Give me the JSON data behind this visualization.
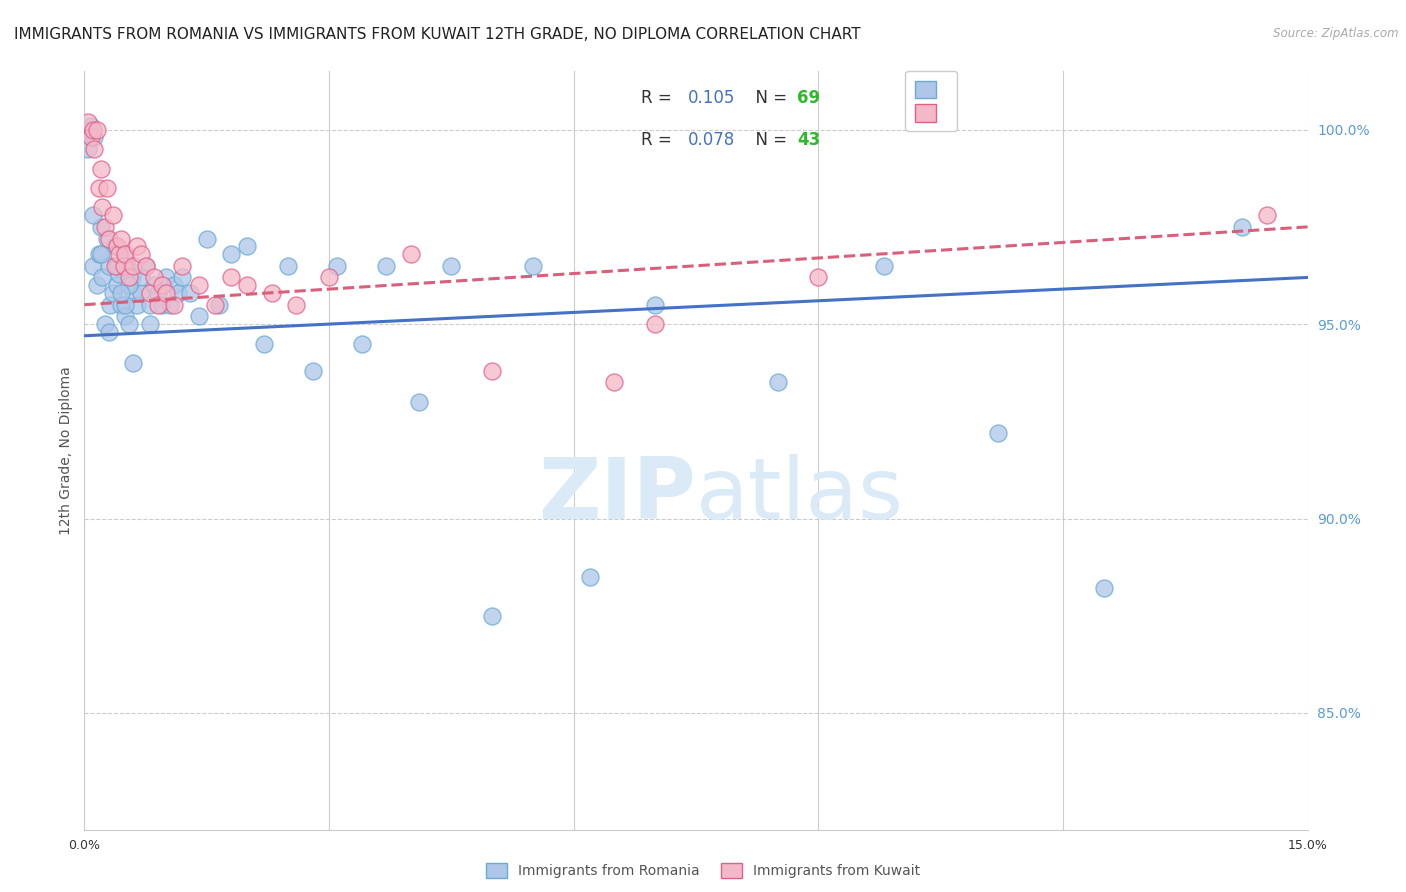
{
  "title": "IMMIGRANTS FROM ROMANIA VS IMMIGRANTS FROM KUWAIT 12TH GRADE, NO DIPLOMA CORRELATION CHART",
  "source": "Source: ZipAtlas.com",
  "ylabel_left": "12th Grade, No Diploma",
  "xlim": [
    0.0,
    15.0
  ],
  "ylim": [
    82.0,
    101.5
  ],
  "xticks": [
    0.0,
    3.0,
    6.0,
    9.0,
    12.0,
    15.0
  ],
  "xtick_labels": [
    "0.0%",
    "",
    "",
    "",
    "",
    "15.0%"
  ],
  "yticks_right": [
    85.0,
    90.0,
    95.0,
    100.0
  ],
  "ytick_labels_right": [
    "85.0%",
    "90.0%",
    "95.0%",
    "100.0%"
  ],
  "romania_color": "#aec6e8",
  "kuwait_color": "#f5b8c8",
  "romania_edge": "#6aaad4",
  "kuwait_edge": "#e0608a",
  "romania_R": 0.105,
  "romania_N": 69,
  "kuwait_R": 0.078,
  "kuwait_N": 43,
  "legend_romania": "Immigrants from Romania",
  "legend_kuwait": "Immigrants from Kuwait",
  "romania_scatter_x": [
    0.05,
    0.05,
    0.08,
    0.1,
    0.12,
    0.15,
    0.18,
    0.2,
    0.22,
    0.25,
    0.28,
    0.3,
    0.32,
    0.35,
    0.38,
    0.4,
    0.42,
    0.45,
    0.48,
    0.5,
    0.52,
    0.55,
    0.58,
    0.6,
    0.65,
    0.7,
    0.75,
    0.8,
    0.85,
    0.9,
    0.95,
    1.0,
    1.05,
    1.1,
    1.15,
    1.2,
    1.3,
    1.4,
    1.5,
    1.65,
    1.8,
    2.0,
    2.2,
    2.5,
    2.8,
    3.1,
    3.4,
    3.7,
    4.1,
    4.5,
    5.0,
    5.5,
    6.2,
    7.0,
    8.5,
    9.8,
    11.2,
    12.5,
    14.2,
    0.1,
    0.2,
    0.3,
    0.4,
    0.5,
    0.6,
    0.7,
    0.8,
    0.55,
    0.45
  ],
  "romania_scatter_y": [
    100.0,
    99.5,
    100.1,
    96.5,
    99.8,
    96.0,
    96.8,
    97.5,
    96.2,
    95.0,
    97.2,
    96.5,
    95.5,
    95.8,
    97.0,
    96.0,
    96.3,
    95.5,
    96.8,
    95.2,
    96.5,
    95.0,
    96.2,
    95.8,
    95.5,
    95.8,
    96.5,
    95.5,
    96.0,
    95.8,
    95.5,
    96.2,
    95.5,
    96.0,
    95.8,
    96.2,
    95.8,
    95.2,
    97.2,
    95.5,
    96.8,
    97.0,
    94.5,
    96.5,
    93.8,
    96.5,
    94.5,
    96.5,
    93.0,
    96.5,
    87.5,
    96.5,
    88.5,
    95.5,
    93.5,
    96.5,
    92.2,
    88.2,
    97.5,
    97.8,
    96.8,
    94.8,
    96.5,
    95.5,
    94.0,
    96.2,
    95.0,
    96.0,
    95.8
  ],
  "kuwait_scatter_x": [
    0.05,
    0.08,
    0.1,
    0.12,
    0.15,
    0.18,
    0.2,
    0.22,
    0.25,
    0.28,
    0.3,
    0.35,
    0.38,
    0.4,
    0.42,
    0.45,
    0.48,
    0.5,
    0.55,
    0.6,
    0.65,
    0.7,
    0.75,
    0.8,
    0.85,
    0.9,
    0.95,
    1.0,
    1.1,
    1.2,
    1.4,
    1.6,
    1.8,
    2.0,
    2.3,
    2.6,
    3.0,
    4.0,
    5.0,
    6.5,
    7.0,
    9.0,
    14.5
  ],
  "kuwait_scatter_y": [
    100.2,
    99.8,
    100.0,
    99.5,
    100.0,
    98.5,
    99.0,
    98.0,
    97.5,
    98.5,
    97.2,
    97.8,
    96.5,
    97.0,
    96.8,
    97.2,
    96.5,
    96.8,
    96.2,
    96.5,
    97.0,
    96.8,
    96.5,
    95.8,
    96.2,
    95.5,
    96.0,
    95.8,
    95.5,
    96.5,
    96.0,
    95.5,
    96.2,
    96.0,
    95.8,
    95.5,
    96.2,
    96.8,
    93.8,
    93.5,
    95.0,
    96.2,
    97.8
  ],
  "background_color": "#ffffff",
  "grid_color": "#cccccc",
  "title_fontsize": 11,
  "axis_label_fontsize": 10,
  "tick_fontsize": 9,
  "watermark_text": "ZIPatlas",
  "watermark_color": "#daeaf7",
  "trendline_romania_color": "#4472c4",
  "trendline_kuwait_color": "#d95f7a",
  "legend_r_color": "#4472c4",
  "legend_n_color": "#2ecc40"
}
